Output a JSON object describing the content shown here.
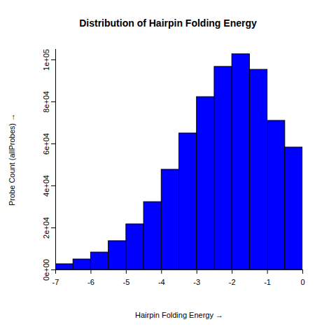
{
  "chart_data": {
    "type": "histogram",
    "title": "Distribution of Hairpin Folding Energy",
    "x_label": "Hairpin Folding Energy",
    "y_label": "Probe Count (allProbes)",
    "bins": [
      -7,
      -6.5,
      -6,
      -5.5,
      -5,
      -4.5,
      -4,
      -3.5,
      -3,
      -2.5,
      -2,
      -1.5,
      -1,
      -0.5,
      0
    ],
    "values": [
      2700,
      5000,
      8300,
      13700,
      21700,
      32300,
      47700,
      65000,
      82300,
      96700,
      102700,
      95300,
      71000,
      58300
    ],
    "color": "#0000ff",
    "xlim": [
      -7,
      0
    ],
    "xticks": [
      -7,
      -6,
      -5,
      -4,
      -3,
      -2,
      -1,
      0
    ],
    "ylim": [
      0,
      105000
    ],
    "yticks": [
      {
        "value": 0,
        "label": "0e+00"
      },
      {
        "value": 20000,
        "label": "2e+04"
      },
      {
        "value": 40000,
        "label": "4e+04"
      },
      {
        "value": 60000,
        "label": "6e+04"
      },
      {
        "value": 80000,
        "label": "8e+04"
      },
      {
        "value": 100000,
        "label": "1e+05"
      }
    ]
  }
}
